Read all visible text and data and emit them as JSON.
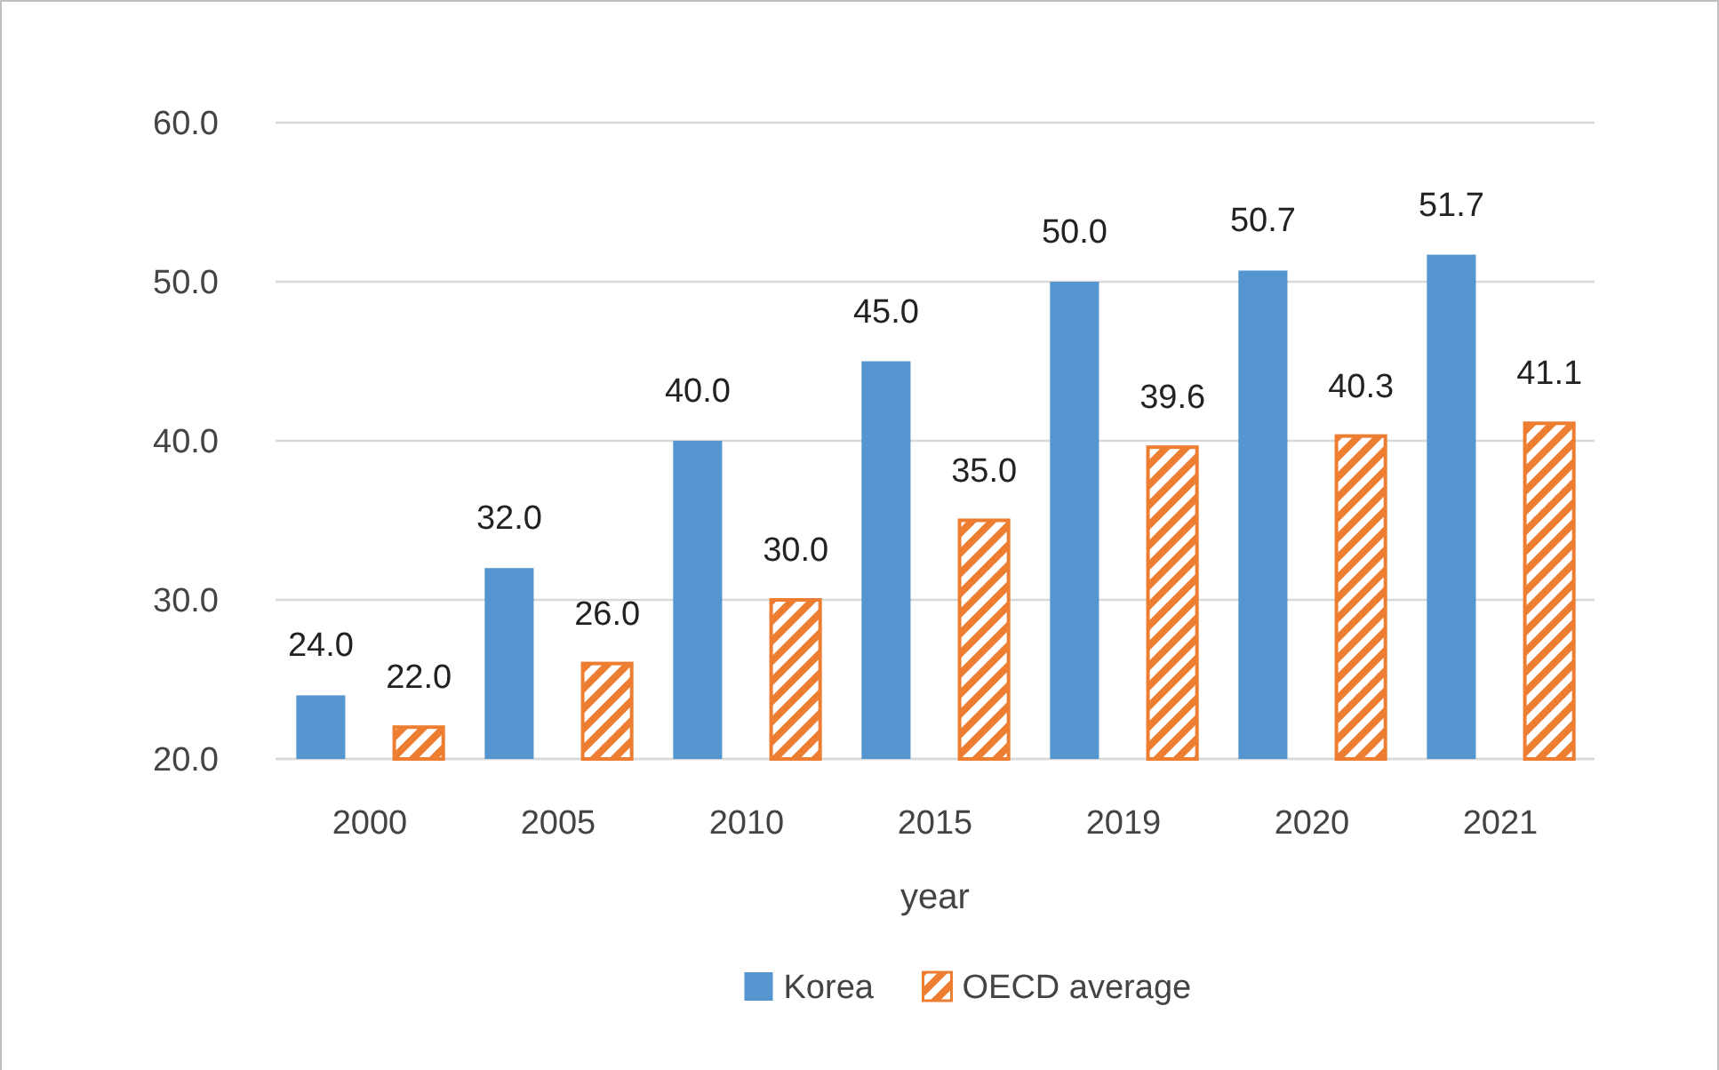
{
  "chart_data": {
    "type": "bar",
    "xlabel": "year",
    "categories": [
      "2000",
      "2005",
      "2010",
      "2015",
      "2019",
      "2020",
      "2021"
    ],
    "series": [
      {
        "name": "Korea",
        "color": "#5596d0",
        "values": [
          24.0,
          32.0,
          40.0,
          45.0,
          50.0,
          50.7,
          51.7
        ],
        "value_labels": [
          "24.0",
          "32.0",
          "40.0",
          "45.0",
          "50.0",
          "50.7",
          "51.7"
        ]
      },
      {
        "name": "OECD average",
        "color": "#ed7d31",
        "values": [
          22.0,
          26.0,
          30.0,
          35.0,
          39.6,
          40.3,
          41.1
        ],
        "value_labels": [
          "22.0",
          "26.0",
          "30.0",
          "35.0",
          "39.6",
          "40.3",
          "41.1"
        ]
      }
    ],
    "ylim": [
      20,
      60
    ],
    "yticks": [
      {
        "value": 20,
        "label": "20.0"
      },
      {
        "value": 30,
        "label": "30.0"
      },
      {
        "value": 40,
        "label": "40.0"
      },
      {
        "value": 50,
        "label": "50.0"
      },
      {
        "value": 60,
        "label": "60.0"
      }
    ],
    "grid": "y",
    "legend": "bottom"
  }
}
